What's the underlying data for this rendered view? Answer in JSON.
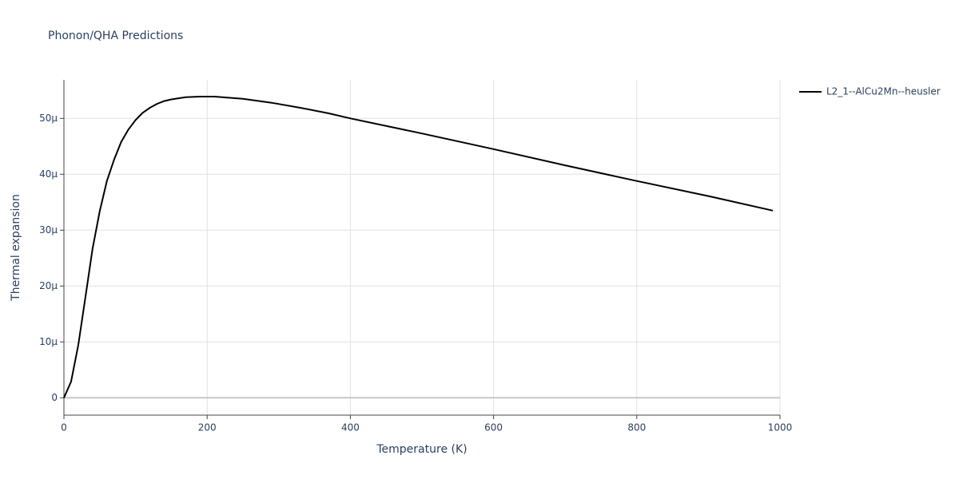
{
  "chart_data": {
    "type": "line",
    "title": "Phonon/QHA Predictions",
    "x_label": "Temperature (K)",
    "y_label": "Thermal expansion",
    "xlim": [
      0,
      1000
    ],
    "ylim": [
      -3.1e-06,
      5.69e-05
    ],
    "xticks": [
      0,
      200,
      400,
      600,
      800,
      1000
    ],
    "yticks": [
      0,
      {
        "value": 1e-05,
        "label": "10µ"
      },
      {
        "value": 2e-05,
        "label": "20µ"
      },
      {
        "value": 3e-05,
        "label": "30µ"
      },
      {
        "value": 4e-05,
        "label": "40µ"
      },
      {
        "value": 5e-05,
        "label": "50µ"
      }
    ],
    "grid": true,
    "legend": "top-right",
    "x": [
      0,
      10,
      20,
      30,
      40,
      50,
      60,
      70,
      80,
      90,
      100,
      110,
      120,
      130,
      140,
      150,
      170,
      190,
      210,
      250,
      290,
      330,
      370,
      400,
      500,
      600,
      700,
      800,
      900,
      990
    ],
    "series": [
      {
        "name": "L2_1--AlCu2Mn--heusler",
        "color": "#000000",
        "values": [
          0,
          2.9e-06,
          9.4e-06,
          1.8e-05,
          2.67e-05,
          3.34e-05,
          3.88e-05,
          4.26e-05,
          4.58e-05,
          4.8e-05,
          4.97e-05,
          5.1e-05,
          5.19e-05,
          5.26e-05,
          5.31e-05,
          5.34e-05,
          5.38e-05,
          5.39e-05,
          5.39e-05,
          5.35e-05,
          5.28e-05,
          5.19e-05,
          5.09e-05,
          5e-05,
          4.73e-05,
          4.45e-05,
          4.16e-05,
          3.88e-05,
          3.61e-05,
          3.35e-05
        ]
      }
    ]
  }
}
